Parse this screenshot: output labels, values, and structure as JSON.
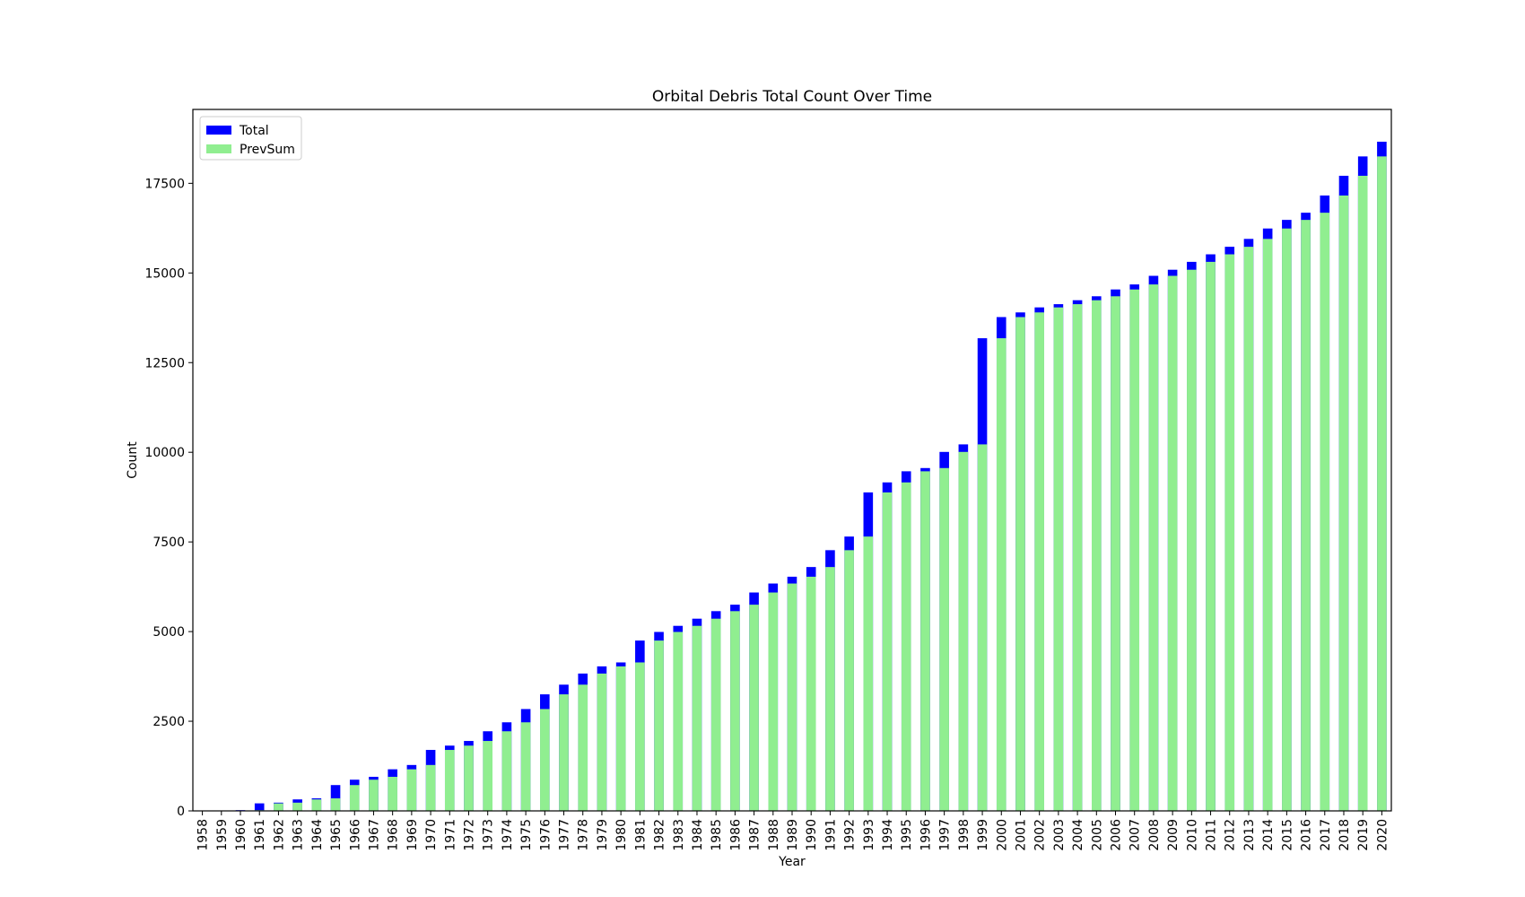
{
  "chart_data": {
    "type": "bar",
    "stacked": true,
    "title": "Orbital Debris Total Count Over Time",
    "xlabel": "Year",
    "ylabel": "Count",
    "ylim": [
      0,
      19560
    ],
    "yticks": [
      0,
      2500,
      5000,
      7500,
      10000,
      12500,
      15000,
      17500
    ],
    "grid": false,
    "legend_position": "top-left",
    "categories": [
      "1958",
      "1959",
      "1960",
      "1961",
      "1962",
      "1963",
      "1964",
      "1965",
      "1966",
      "1967",
      "1968",
      "1969",
      "1970",
      "1971",
      "1972",
      "1973",
      "1974",
      "1975",
      "1976",
      "1977",
      "1978",
      "1979",
      "1980",
      "1981",
      "1982",
      "1983",
      "1984",
      "1985",
      "1986",
      "1987",
      "1988",
      "1989",
      "1990",
      "1991",
      "1992",
      "1993",
      "1994",
      "1995",
      "1996",
      "1997",
      "1998",
      "1999",
      "2000",
      "2001",
      "2002",
      "2003",
      "2004",
      "2005",
      "2006",
      "2007",
      "2008",
      "2009",
      "2010",
      "2011",
      "2012",
      "2013",
      "2014",
      "2015",
      "2016",
      "2017",
      "2018",
      "2019",
      "2020"
    ],
    "series": [
      {
        "name": "PrevSum",
        "color": "#90ee90",
        "values": [
          0,
          0,
          0,
          20,
          210,
          230,
          320,
          350,
          720,
          870,
          950,
          1160,
          1280,
          1700,
          1820,
          1950,
          2220,
          2470,
          2840,
          3250,
          3520,
          3830,
          4030,
          4140,
          4750,
          4990,
          5160,
          5360,
          5570,
          5750,
          6090,
          6340,
          6530,
          6800,
          7270,
          7650,
          8880,
          9160,
          9470,
          9560,
          10010,
          10220,
          13180,
          13770,
          13900,
          14040,
          14130,
          14240,
          14350,
          14540,
          14680,
          14920,
          15090,
          15310,
          15520,
          15730,
          15950,
          16240,
          16480,
          16680,
          17160,
          17710,
          18250
        ]
      },
      {
        "name": "Total",
        "color": "#0000ff",
        "values": [
          0,
          0,
          20,
          210,
          230,
          320,
          350,
          720,
          870,
          950,
          1160,
          1280,
          1700,
          1820,
          1950,
          2220,
          2470,
          2840,
          3250,
          3520,
          3830,
          4030,
          4140,
          4750,
          4990,
          5160,
          5360,
          5570,
          5750,
          6090,
          6340,
          6530,
          6800,
          7270,
          7650,
          8880,
          9160,
          9470,
          9560,
          10010,
          10220,
          13180,
          13770,
          13900,
          14040,
          14130,
          14240,
          14350,
          14540,
          14680,
          14920,
          15090,
          15310,
          15520,
          15730,
          15950,
          16240,
          16480,
          16680,
          17160,
          17710,
          18250,
          18660
        ]
      }
    ]
  }
}
